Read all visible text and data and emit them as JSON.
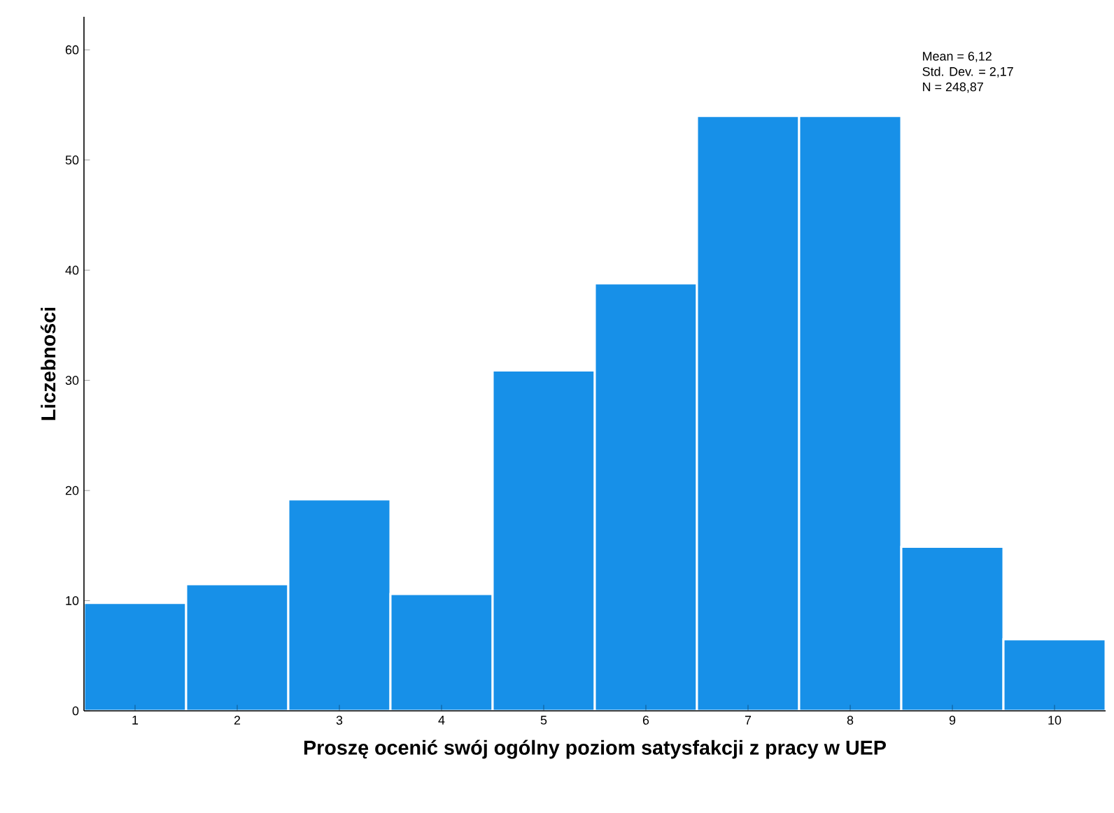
{
  "chart_data": {
    "type": "histogram",
    "xlabel": "Proszę ocenić swój ogólny poziom satysfakcji z pracy w UEP",
    "ylabel": "Liczebności",
    "bins": [
      0.5,
      1.5,
      2.5,
      3.5,
      4.5,
      5.5,
      6.5,
      7.5,
      8.5,
      9.5,
      10.5
    ],
    "values": [
      9.8,
      11.5,
      19.2,
      10.6,
      30.9,
      38.8,
      54.0,
      54.0,
      14.9,
      6.5
    ],
    "color": "#1790e8",
    "xlim": [
      0.5,
      10.5
    ],
    "ylim": [
      0,
      63
    ],
    "xticks": [
      1,
      2,
      3,
      4,
      5,
      6,
      7,
      8,
      9,
      10
    ],
    "yticks": [
      0,
      10,
      20,
      30,
      40,
      50,
      60
    ],
    "grid": false,
    "annotations": [
      "Mean = 6,12",
      "Std. Dev. = 2,17",
      "N = 248,87"
    ]
  }
}
